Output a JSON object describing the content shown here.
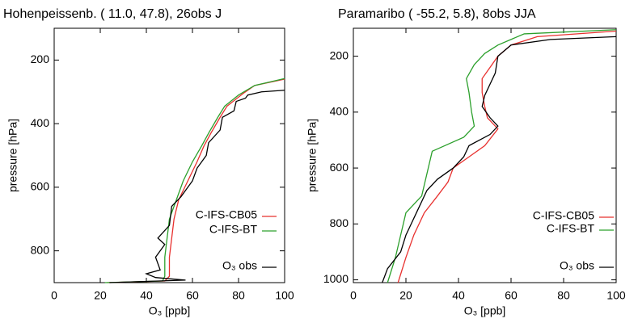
{
  "chart_data": [
    {
      "type": "line",
      "title": "Hohenpeissenb. (  11.0, 47.8),  26obs J",
      "xlabel": "O₃ [ppb]",
      "ylabel": "pressure [hPa]",
      "xlim": [
        0,
        100
      ],
      "xticks": [
        0,
        20,
        40,
        60,
        80,
        100
      ],
      "ylim": [
        900,
        100
      ],
      "yticks": [
        200,
        400,
        600,
        800
      ],
      "legend": "lower right",
      "series": [
        {
          "name": "C-IFS-CB05",
          "color": "#e8312f",
          "x": [
            23,
            48,
            50,
            50,
            51,
            52,
            54,
            58,
            62,
            65,
            68,
            72,
            75,
            82,
            87,
            100
          ],
          "values": [
            900,
            895,
            880,
            820,
            760,
            700,
            640,
            580,
            520,
            470,
            430,
            380,
            345,
            305,
            280,
            260
          ]
        },
        {
          "name": "C-IFS-BT",
          "color": "#2ca02c",
          "x": [
            22,
            47,
            48,
            48,
            49,
            50,
            53,
            56,
            60,
            64,
            67,
            71,
            74,
            80,
            87,
            100
          ],
          "values": [
            900,
            895,
            880,
            820,
            760,
            700,
            640,
            580,
            520,
            470,
            430,
            380,
            345,
            310,
            280,
            258
          ]
        },
        {
          "name": "O₃ obs",
          "color": "#000000",
          "x": [
            24,
            57,
            44,
            40,
            46,
            44,
            48,
            45,
            50,
            51,
            55,
            60,
            62,
            66,
            67,
            72,
            73,
            78,
            79,
            83,
            84,
            90,
            100
          ],
          "values": [
            900,
            892,
            884,
            872,
            860,
            820,
            780,
            760,
            720,
            660,
            630,
            580,
            540,
            500,
            460,
            420,
            380,
            360,
            330,
            320,
            310,
            300,
            295
          ]
        }
      ]
    },
    {
      "type": "line",
      "title": "Paramaribo ( -55.2,  5.8),   8obs JJA",
      "xlabel": "O₃ [ppb]",
      "ylabel": "pressure [hPa]",
      "xlim": [
        0,
        100
      ],
      "xticks": [
        0,
        20,
        40,
        60,
        80,
        100
      ],
      "ylim": [
        1010,
        100
      ],
      "yticks": [
        200,
        400,
        600,
        800,
        1000
      ],
      "legend": "lower right",
      "series": [
        {
          "name": "C-IFS-CB05",
          "color": "#e8312f",
          "x": [
            17,
            20,
            23,
            27,
            32,
            36,
            38,
            44,
            50,
            55,
            51,
            50,
            49,
            49,
            52,
            55,
            60,
            70,
            100
          ],
          "values": [
            1010,
            920,
            840,
            760,
            700,
            650,
            600,
            560,
            520,
            460,
            420,
            380,
            330,
            280,
            240,
            200,
            160,
            130,
            110
          ]
        },
        {
          "name": "C-IFS-BT",
          "color": "#2ca02c",
          "x": [
            13,
            16,
            18,
            20,
            26,
            28,
            30,
            42,
            46,
            45,
            44,
            43,
            46,
            50,
            55,
            65,
            100
          ],
          "values": [
            1010,
            920,
            840,
            760,
            700,
            620,
            540,
            490,
            450,
            400,
            330,
            280,
            230,
            190,
            160,
            120,
            105
          ]
        },
        {
          "name": "O₃ obs",
          "color": "#000000",
          "x": [
            11,
            13,
            18,
            20,
            24,
            28,
            32,
            38,
            42,
            44,
            52,
            55,
            52,
            49,
            50,
            52,
            54,
            55,
            60,
            75,
            100
          ],
          "values": [
            1010,
            960,
            900,
            840,
            760,
            680,
            640,
            600,
            560,
            520,
            480,
            450,
            420,
            380,
            340,
            300,
            260,
            200,
            160,
            140,
            130
          ]
        }
      ]
    }
  ]
}
